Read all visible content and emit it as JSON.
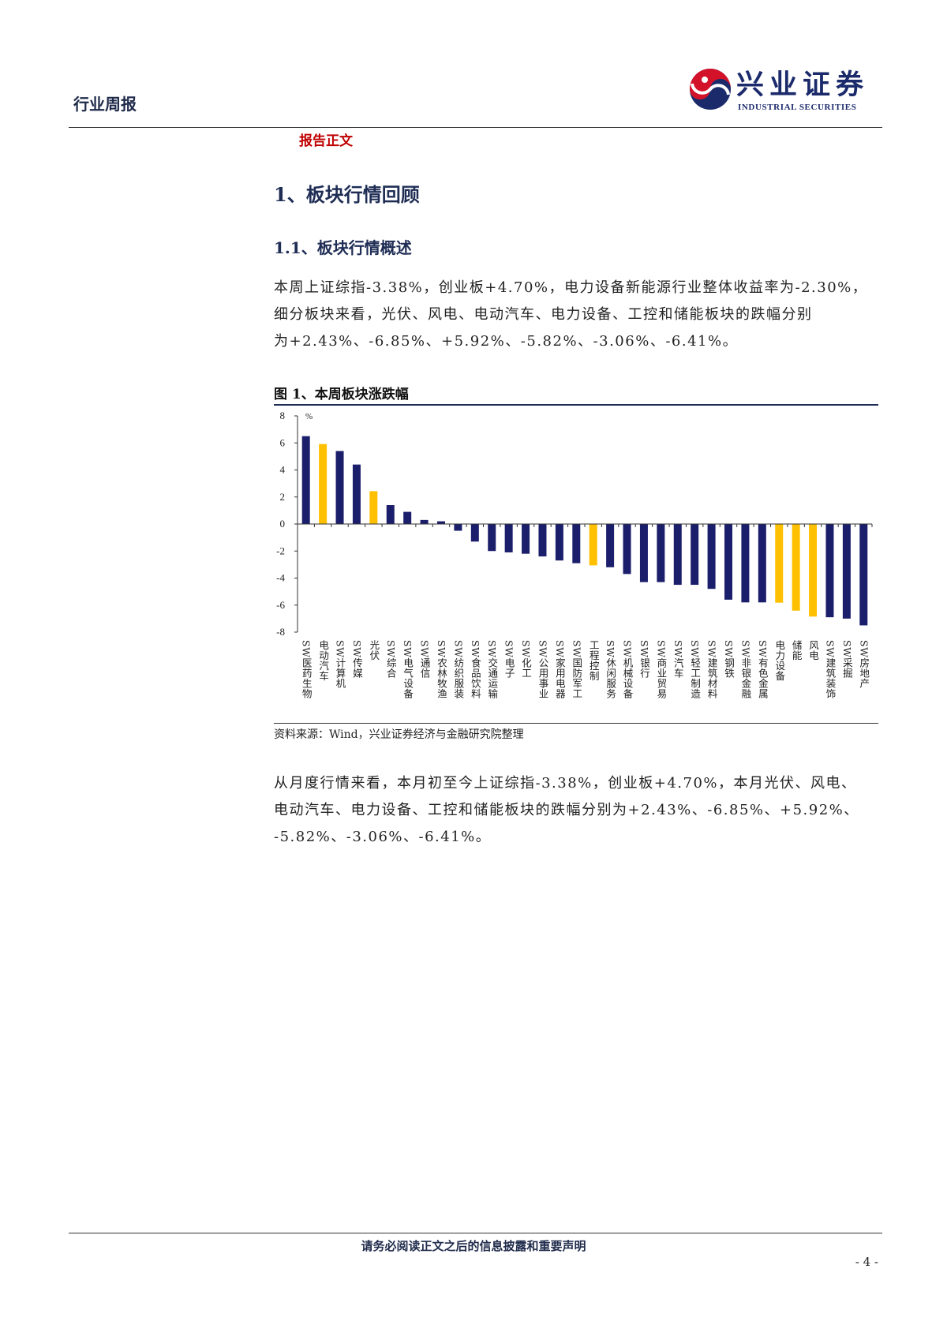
{
  "header": {
    "doc_type": "行业周报",
    "logo_cn": "兴业证券",
    "logo_en": "INDUSTRIAL SECURITIES"
  },
  "section_label": "报告正文",
  "heading1": "1、板块行情回顾",
  "heading2": "1.1、板块行情概述",
  "paragraph1": [
    "本周上证综指-3.38%，创业板+4.70%，电力设备新能源行业整体收益率为-2.30%，",
    "细分板块来看，光伏、风电、电动汽车、电力设备、工控和储能板块的跌幅分别",
    "为+2.43%、-6.85%、+5.92%、-5.82%、-3.06%、-6.41%。"
  ],
  "figure": {
    "title": "图 1、本周板块涨跌幅",
    "source": "资料来源：Wind，兴业证券经济与金融研究院整理"
  },
  "paragraph2": [
    "从月度行情来看，本月初至今上证综指-3.38%，创业板+4.70%，本月光伏、风电、",
    "电动汽车、电力设备、工控和储能板块的跌幅分别为+2.43%、-6.85%、+5.92%、",
    "-5.82%、-3.06%、-6.41%。"
  ],
  "footer": {
    "disclaimer": "请务必阅读正文之后的信息披露和重要声明",
    "page_number": "- 4 -"
  },
  "colors": {
    "bar_default": "#1b1f6b",
    "bar_highlight": "#ffc000",
    "heading": "#1f2d55",
    "accent_red": "#c00000",
    "logo_red": "#d3122a",
    "logo_navy": "#1b2a6b"
  },
  "chart_data": {
    "type": "bar",
    "title": "",
    "xlabel": "",
    "ylabel": "%",
    "ylim": [
      -8,
      8
    ],
    "yticks": [
      8,
      6,
      4,
      2,
      0,
      -2,
      -4,
      -6,
      -8
    ],
    "grid": false,
    "legend": "none",
    "categories": [
      "SW医药生物",
      "电动汽车",
      "SW计算机",
      "SW传媒",
      "光伏",
      "SW综合",
      "SW电气设备",
      "SW通信",
      "SW农林牧渔",
      "SW纺织服装",
      "SW食品饮料",
      "SW交通运输",
      "SW电子",
      "SW化工",
      "SW公用事业",
      "SW家用电器",
      "SW国防军工",
      "工程控制",
      "SW休闲服务",
      "SW机械设备",
      "SW银行",
      "SW商业贸易",
      "SW汽车",
      "SW轻工制造",
      "SW建筑材料",
      "SW钢铁",
      "SW非银金融",
      "SW有色金属",
      "电力设备",
      "储能",
      "风电",
      "SW建筑装饰",
      "SW采掘",
      "SW房地产"
    ],
    "values": [
      6.5,
      5.92,
      5.4,
      4.4,
      2.43,
      1.4,
      0.9,
      0.3,
      0.2,
      -0.5,
      -1.3,
      -2.0,
      -2.1,
      -2.2,
      -2.4,
      -2.7,
      -2.9,
      -3.06,
      -3.2,
      -3.7,
      -4.3,
      -4.3,
      -4.5,
      -4.5,
      -4.8,
      -5.6,
      -5.8,
      -5.8,
      -5.82,
      -6.41,
      -6.85,
      -6.9,
      -7.0,
      -7.5
    ],
    "highlighted_categories": [
      "电动汽车",
      "光伏",
      "工程控制",
      "电力设备",
      "储能",
      "风电"
    ]
  }
}
